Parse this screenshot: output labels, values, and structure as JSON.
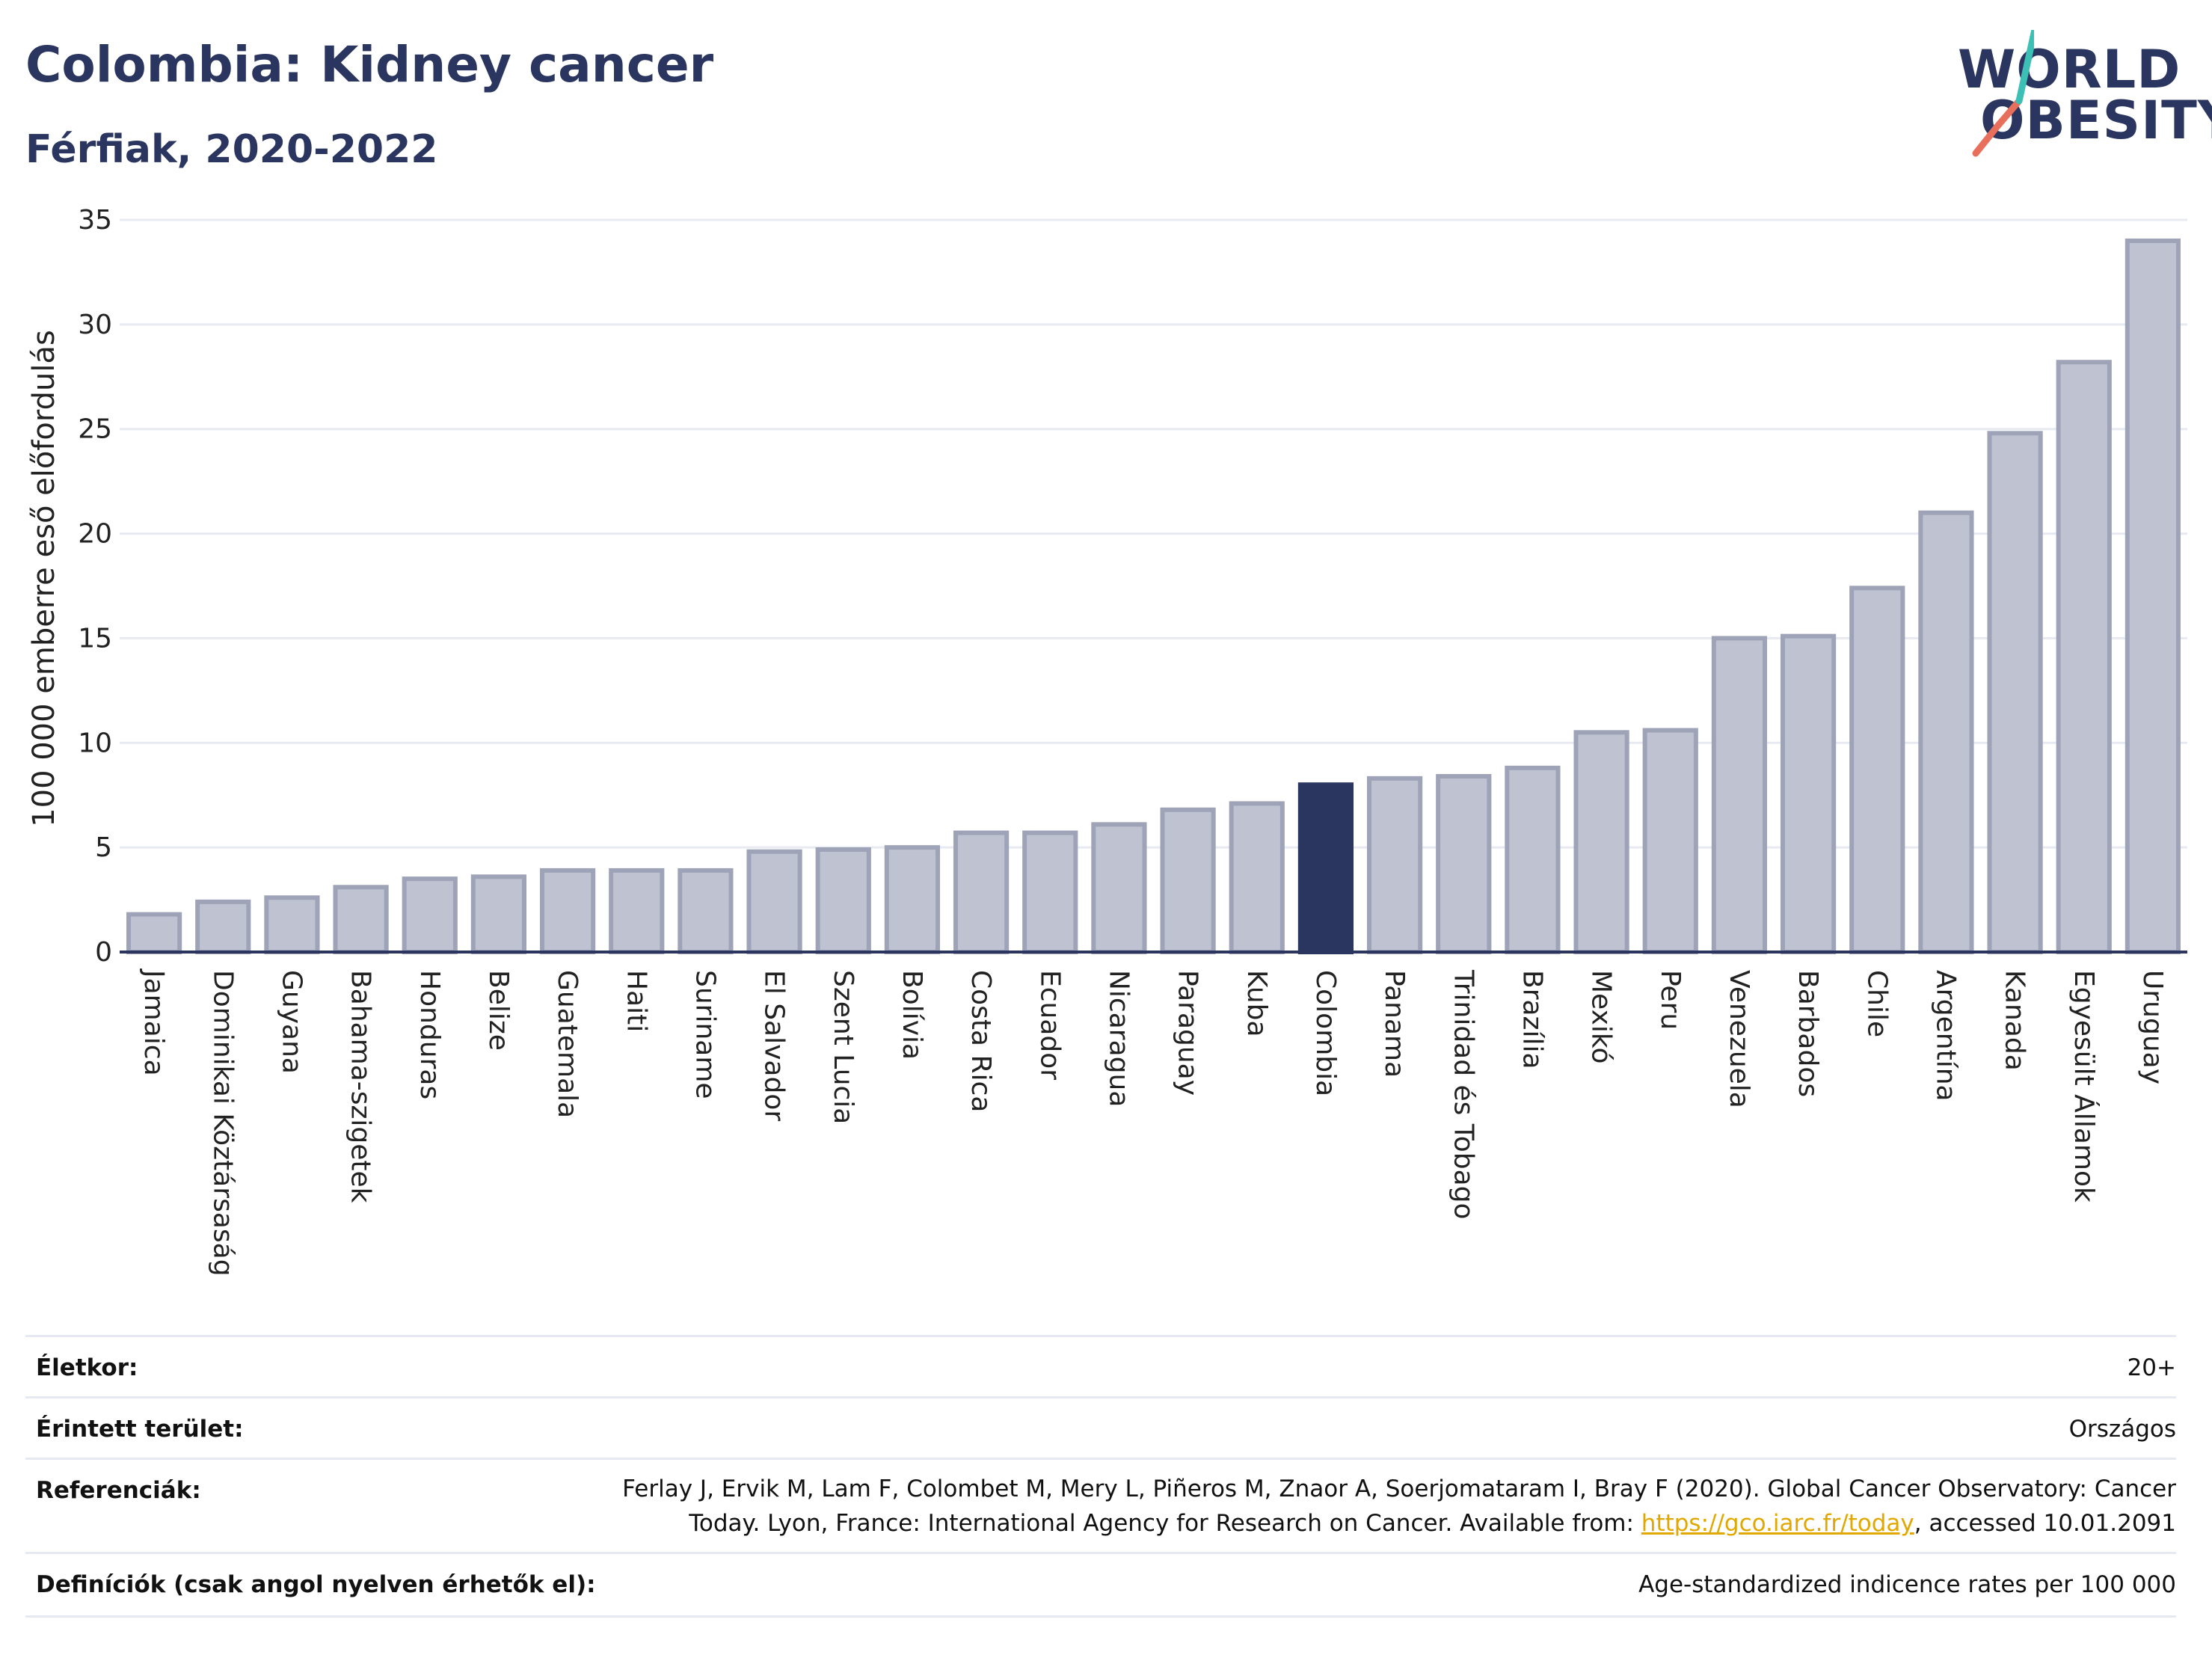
{
  "title": "Colombia: Kidney cancer",
  "subtitle": "Férfiak, 2020-2022",
  "logo": {
    "line1": "WORLD",
    "line2": "OBESITY"
  },
  "colors": {
    "bar": "#bfc3d1",
    "bar_border": "#9ea3b8",
    "highlight": "#2a3560",
    "grid": "#e8eaf1",
    "axis": "#2a3560",
    "slash_teal": "#3cc0b5",
    "slash_red": "#e76f5b"
  },
  "chart_data": {
    "type": "bar",
    "ylabel": "100 000 emberre eső előfordulás",
    "ylim": [
      0,
      35
    ],
    "yticks": [
      0,
      5,
      10,
      15,
      20,
      25,
      30,
      35
    ],
    "grid": true,
    "highlight": "Colombia",
    "categories": [
      "Jamaica",
      "Dominikai Köztársaság",
      "Guyana",
      "Bahama-szigetek",
      "Honduras",
      "Belize",
      "Guatemala",
      "Haiti",
      "Suriname",
      "El Salvador",
      "Szent Lucia",
      "Bolívia",
      "Costa Rica",
      "Ecuador",
      "Nicaragua",
      "Paraguay",
      "Kuba",
      "Colombia",
      "Panama",
      "Trinidad és Tobago",
      "Brazília",
      "Mexikó",
      "Peru",
      "Venezuela",
      "Barbados",
      "Chile",
      "Argentína",
      "Kanada",
      "Egyesült Államok",
      "Uruguay"
    ],
    "values": [
      1.8,
      2.4,
      2.6,
      3.1,
      3.5,
      3.6,
      3.9,
      3.9,
      3.9,
      4.8,
      4.9,
      5.0,
      5.7,
      5.7,
      6.1,
      6.8,
      7.1,
      8.0,
      8.3,
      8.4,
      8.8,
      10.5,
      10.6,
      15.0,
      15.1,
      17.4,
      21.0,
      24.8,
      28.2,
      34.0
    ]
  },
  "meta": {
    "age_label": "Életkor:",
    "age_value": "20+",
    "area_label": "Érintett terület:",
    "area_value": "Országos",
    "ref_label": "Referenciák:",
    "ref_line1": "Ferlay J, Ervik M, Lam F, Colombet M, Mery L, Piñeros M, Znaor A, Soerjomataram I, Bray F (2020). Global Cancer Observatory: Cancer",
    "ref_line2_pre": "Today. Lyon, France: International Agency for Research on Cancer. Available from: ",
    "ref_link": "https://gco.iarc.fr/today",
    "ref_line2_post": ", accessed 10.01.2091",
    "def_label": "Definíciók (csak angol nyelven érhetők el):",
    "def_value": "Age-standardized indicence rates per 100 000"
  }
}
